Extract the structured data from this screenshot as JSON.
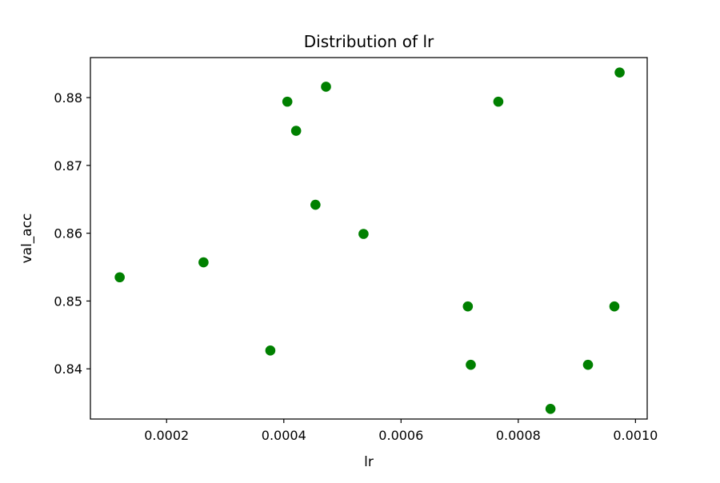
{
  "chart_data": {
    "type": "scatter",
    "title": "Distribution of lr",
    "xlabel": "lr",
    "ylabel": "val_acc",
    "xlim": [
      7e-05,
      0.00102
    ],
    "ylim": [
      0.8326,
      0.8859
    ],
    "x_ticks": [
      0.0002,
      0.0004,
      0.0006,
      0.0008,
      0.001
    ],
    "x_tick_labels": [
      "0.0002",
      "0.0004",
      "0.0006",
      "0.0008",
      "0.0010"
    ],
    "y_ticks": [
      0.84,
      0.85,
      0.86,
      0.87,
      0.88
    ],
    "y_tick_labels": [
      "0.84",
      "0.85",
      "0.86",
      "0.87",
      "0.88"
    ],
    "grid": false,
    "marker_color": "#008000",
    "series": [
      {
        "x": [
          0.00012,
          0.000263,
          0.000377,
          0.000406,
          0.000421,
          0.000454,
          0.000472,
          0.000536,
          0.000714,
          0.000719,
          0.000766,
          0.000855,
          0.000919,
          0.000964,
          0.000973
        ],
        "y": [
          0.8535,
          0.8557,
          0.8427,
          0.8794,
          0.8751,
          0.8642,
          0.8816,
          0.8599,
          0.8492,
          0.8406,
          0.8794,
          0.8341,
          0.8406,
          0.8492,
          0.8837
        ]
      }
    ]
  }
}
